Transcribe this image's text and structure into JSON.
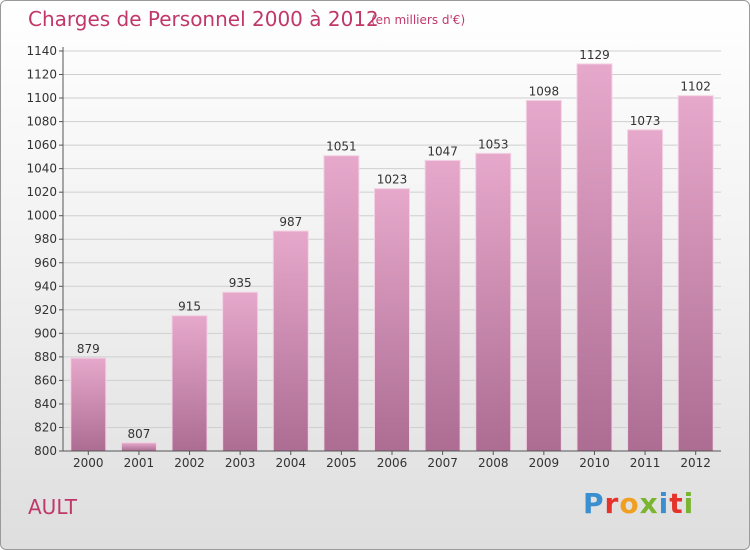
{
  "chart_data": {
    "type": "bar",
    "title": "Charges de Personnel 2000 à 2012",
    "subtitle": "(en milliers d'€)",
    "categories": [
      "2000",
      "2001",
      "2002",
      "2003",
      "2004",
      "2005",
      "2006",
      "2007",
      "2008",
      "2009",
      "2010",
      "2011",
      "2012"
    ],
    "values": [
      879,
      807,
      915,
      935,
      987,
      1051,
      1023,
      1047,
      1053,
      1098,
      1129,
      1073,
      1102
    ],
    "data_labels": [
      "879",
      "807",
      "915",
      "935",
      "987",
      "1051",
      "1023",
      "1047",
      "1053",
      "1098",
      "1129",
      "1073",
      "1102"
    ],
    "ylim": [
      800,
      1140
    ],
    "yticks": [
      800,
      820,
      840,
      860,
      880,
      900,
      920,
      940,
      960,
      980,
      1000,
      1020,
      1040,
      1060,
      1080,
      1100,
      1120,
      1140
    ],
    "grid": true,
    "bar_color": "#d98ab3"
  },
  "footer": {
    "place": "AULT",
    "logo_letters": [
      "P",
      "r",
      "o",
      "x",
      "i",
      "t",
      "i"
    ],
    "logo_colors": [
      "#3a8fd0",
      "#e5322b",
      "#f0a020",
      "#7ab530",
      "#3a8fd0",
      "#e5322b",
      "#7ab530"
    ]
  }
}
